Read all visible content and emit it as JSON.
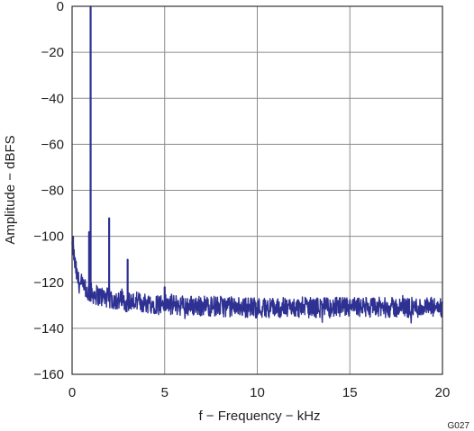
{
  "chart_data": {
    "type": "line",
    "xlabel": "f − Frequency − kHz",
    "ylabel": "Amplitude − dBFS",
    "xlim": [
      0,
      20
    ],
    "ylim": [
      -160,
      0
    ],
    "x_ticks": [
      0,
      5,
      10,
      15,
      20
    ],
    "y_ticks": [
      0,
      -20,
      -40,
      -60,
      -80,
      -100,
      -120,
      -140,
      -160
    ],
    "x_tick_labels": [
      "0",
      "5",
      "10",
      "15",
      "20"
    ],
    "y_tick_labels": [
      "0",
      "−20",
      "−40",
      "−60",
      "−80",
      "−100",
      "−120",
      "−140",
      "−160"
    ],
    "grid": true,
    "series_color": "#2e3192",
    "noise_floor": [
      {
        "x": 0.05,
        "y": -105
      },
      {
        "x": 0.15,
        "y": -112
      },
      {
        "x": 0.3,
        "y": -119
      },
      {
        "x": 0.5,
        "y": -122
      },
      {
        "x": 0.8,
        "y": -124
      },
      {
        "x": 1.5,
        "y": -126
      },
      {
        "x": 2.5,
        "y": -128
      },
      {
        "x": 4,
        "y": -129
      },
      {
        "x": 6,
        "y": -130
      },
      {
        "x": 10,
        "y": -131
      },
      {
        "x": 15,
        "y": -131
      },
      {
        "x": 20,
        "y": -131
      }
    ],
    "noise_band_dB": 4.5,
    "peaks": [
      {
        "x": 0.05,
        "y": -100
      },
      {
        "x": 0.92,
        "y": -98
      },
      {
        "x": 1.0,
        "y": 0
      },
      {
        "x": 2.0,
        "y": -92
      },
      {
        "x": 3.0,
        "y": -110
      },
      {
        "x": 5.0,
        "y": -122
      }
    ],
    "figure_code": "G027"
  }
}
